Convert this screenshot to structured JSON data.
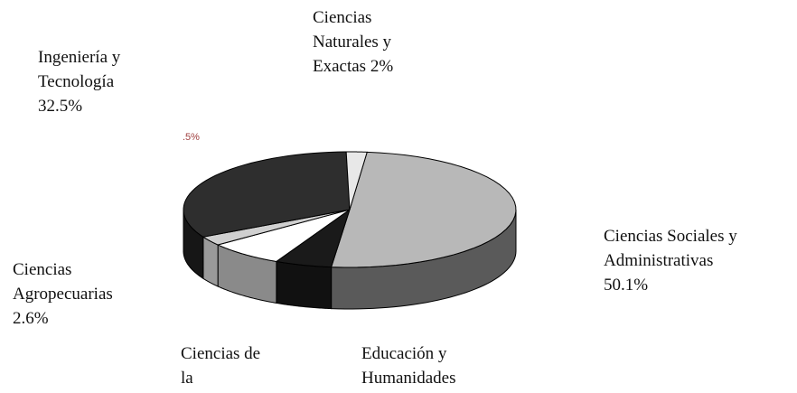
{
  "chart_data": {
    "type": "pie3d",
    "categories": [
      "Ciencias Sociales y Administrativas",
      "Educación y Humanidades",
      "Ciencias de la",
      "Ciencias Agropecuarias",
      "Ingeniería y Tecnología",
      "Ciencias Naturales y Exactas"
    ],
    "values": [
      50.1,
      5.5,
      7.3,
      2.6,
      32.5,
      2
    ],
    "value_labels": [
      "50.1%",
      null,
      null,
      "2.6%",
      "32.5%",
      "2%"
    ],
    "colors": [
      "#b8b8b8",
      "#1a1a1a",
      "#ffffff",
      "#d0d0d0",
      "#2e2e2e",
      "#e8e8e8"
    ],
    "side_colors": [
      "#5a5a5a",
      "#111111",
      "#8a8a8a",
      "#9a9a9a",
      "#161616",
      "#777777"
    ],
    "annotation": ".5%"
  }
}
